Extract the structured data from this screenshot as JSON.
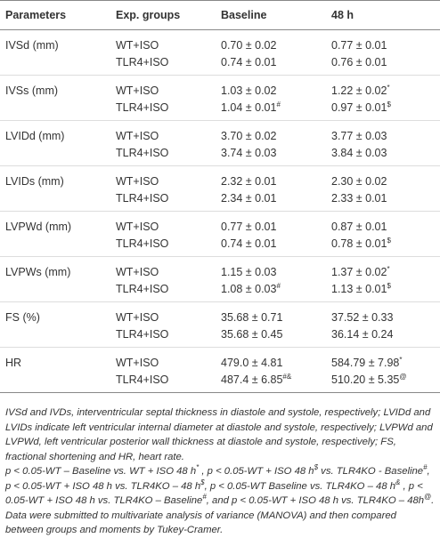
{
  "table": {
    "header": [
      "Parameters",
      "Exp. groups",
      "Baseline",
      "48 h"
    ],
    "groups": [
      {
        "parameter": "IVSd (mm)",
        "rows": [
          {
            "group": "WT+ISO",
            "baseline": "0.70 ± 0.02",
            "h48": "0.77 ± 0.01"
          },
          {
            "group": "TLR4+ISO",
            "baseline": "0.74 ± 0.01",
            "h48": "0.76 ± 0.01"
          }
        ]
      },
      {
        "parameter": "IVSs (mm)",
        "rows": [
          {
            "group": "WT+ISO",
            "baseline": "1.03 ± 0.02",
            "h48": "1.22 ± 0.02",
            "h48_sup": "*"
          },
          {
            "group": "TLR4+ISO",
            "baseline": "1.04 ± 0.01",
            "baseline_sup": "#",
            "h48": "0.97 ± 0.01",
            "h48_sup": "$"
          }
        ]
      },
      {
        "parameter": "LVIDd (mm)",
        "rows": [
          {
            "group": "WT+ISO",
            "baseline": "3.70 ± 0.02",
            "h48": "3.77 ± 0.03"
          },
          {
            "group": "TLR4+ISO",
            "baseline": "3.74 ± 0.03",
            "h48": "3.84 ± 0.03"
          }
        ]
      },
      {
        "parameter": "LVIDs (mm)",
        "rows": [
          {
            "group": "WT+ISO",
            "baseline": "2.32 ± 0.01",
            "h48": "2.30 ± 0.02"
          },
          {
            "group": "TLR4+ISO",
            "baseline": "2.34 ± 0.01",
            "h48": "2.33 ± 0.01"
          }
        ]
      },
      {
        "parameter": "LVPWd (mm)",
        "rows": [
          {
            "group": "WT+ISO",
            "baseline": "0.77 ± 0.01",
            "h48": "0.87 ± 0.01"
          },
          {
            "group": "TLR4+ISO",
            "baseline": "0.74 ± 0.01",
            "h48": "0.78 ± 0.01",
            "h48_sup": "$"
          }
        ]
      },
      {
        "parameter": "LVPWs (mm)",
        "rows": [
          {
            "group": "WT+ISO",
            "baseline": "1.15 ± 0.03",
            "h48": "1.37 ± 0.02",
            "h48_sup": "*"
          },
          {
            "group": "TLR4+ISO",
            "baseline": "1.08 ± 0.03",
            "baseline_sup": "#",
            "h48": "1.13 ± 0.01",
            "h48_sup": "$"
          }
        ]
      },
      {
        "parameter": "FS (%)",
        "rows": [
          {
            "group": "WT+ISO",
            "baseline": "35.68 ± 0.71",
            "h48": "37.52 ± 0.33"
          },
          {
            "group": "TLR4+ISO",
            "baseline": "35.68 ± 0.45",
            "h48": "36.14 ± 0.24"
          }
        ]
      },
      {
        "parameter": "HR",
        "rows": [
          {
            "group": "WT+ISO",
            "baseline": "479.0 ± 4.81",
            "h48": "584.79 ± 7.98",
            "h48_sup": "*"
          },
          {
            "group": "TLR4+ISO",
            "baseline": "487.4 ± 6.85",
            "baseline_sup": "#&",
            "h48": "510.20 ± 5.35",
            "h48_sup": "@"
          }
        ]
      }
    ]
  },
  "notes": [
    [
      {
        "text": "IVSd and IVDs, interventricular septal thickness in diastole and systole, respectively; LVIDd and LVIDs indicate left ventricular internal diameter at diastole and systole, respectively; LVPWd and LVPWd, left ventricular posterior wall thickness at diastole and systole, respectively; FS, fractional shortening and HR, heart rate."
      }
    ],
    [
      {
        "text": "p < 0.05-WT – Baseline vs. WT + ISO 48 h",
        "sup": "*"
      },
      {
        "text": " , p < 0.05-WT + ISO 48 h",
        "sup": "$"
      },
      {
        "text": " vs. TLR4KO - Baseline",
        "sup": "#"
      },
      {
        "text": ", p < 0.05-WT + ISO 48 h vs. TLR4KO – 48 h",
        "sup": "$"
      },
      {
        "text": ", p < 0.05-WT  Baseline vs. TLR4KO – 48 h",
        "sup": "&"
      },
      {
        "text": " , p < 0.05-WT + ISO 48 h vs. TLR4KO – Baseline",
        "sup": "#"
      },
      {
        "text": ", and p < 0.05-WT + ISO 48 h vs. TLR4KO – 48h",
        "sup": "@"
      },
      {
        "text": "."
      }
    ],
    [
      {
        "text": "Data were submitted to multivariate analysis of variance (MANOVA) and then compared between groups and moments by Tukey-Cramer."
      }
    ]
  ]
}
